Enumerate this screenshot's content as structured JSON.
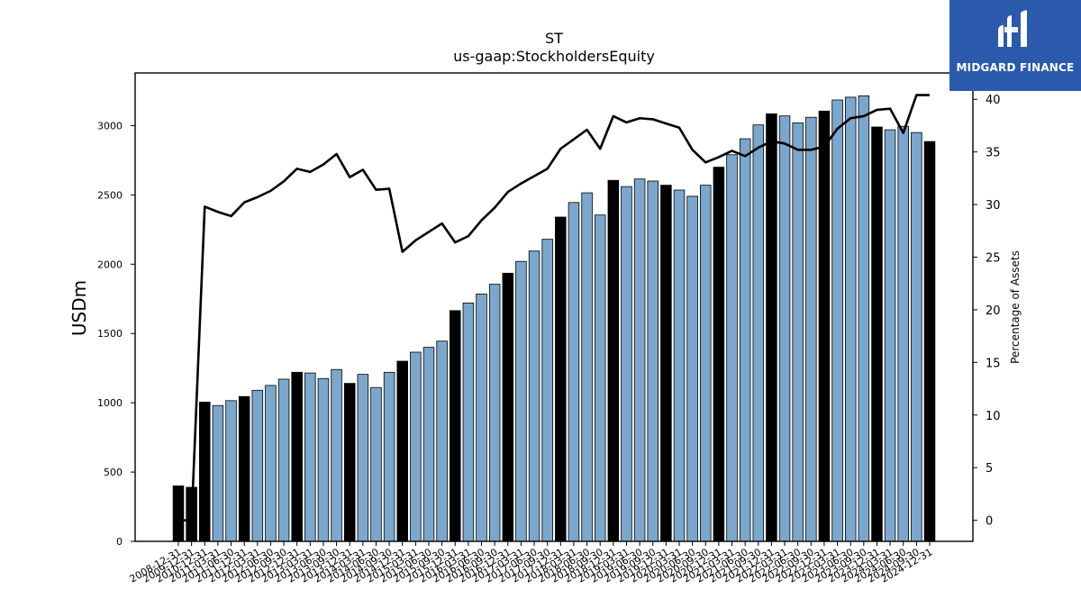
{
  "brand": {
    "name": "MIDGARD FINANCE",
    "bg_color": "#2b5aad"
  },
  "chart_data": {
    "type": "bar",
    "title": "ST",
    "subtitle": "us-gaap:StockholdersEquity",
    "ylabel": "USDm",
    "ylabel_right": "Percentage of Assets",
    "ylim": [
      0,
      3380
    ],
    "ylim_right": [
      -2.0,
      42.5
    ],
    "yticks": [
      0,
      500,
      1000,
      1500,
      2000,
      2500,
      3000
    ],
    "yticks_right": [
      0,
      5,
      10,
      15,
      20,
      25,
      30,
      35,
      40
    ],
    "grid": false,
    "colors": {
      "annual": "#000000",
      "quarterly": "#7ba7cc",
      "line": "#000000"
    },
    "categories": [
      "2008-12-31",
      "2009-12-31",
      "2010-12-31",
      "2011-03-31",
      "2011-06-30",
      "2011-12-31",
      "2012-03-31",
      "2012-06-30",
      "2012-09-30",
      "2012-12-31",
      "2013-03-31",
      "2013-06-30",
      "2013-09-30",
      "2013-12-31",
      "2014-03-31",
      "2014-06-30",
      "2014-09-30",
      "2014-12-31",
      "2015-03-31",
      "2015-06-30",
      "2015-09-30",
      "2015-12-31",
      "2016-03-31",
      "2016-06-30",
      "2016-09-30",
      "2016-12-31",
      "2017-03-31",
      "2017-06-30",
      "2017-09-30",
      "2017-12-31",
      "2018-03-31",
      "2018-06-30",
      "2018-09-30",
      "2018-12-31",
      "2019-03-31",
      "2019-06-30",
      "2019-09-30",
      "2019-12-31",
      "2020-03-31",
      "2020-06-30",
      "2020-09-30",
      "2020-12-31",
      "2021-03-31",
      "2021-06-30",
      "2021-09-30",
      "2021-12-31",
      "2022-03-31",
      "2022-06-30",
      "2022-09-30",
      "2022-12-31",
      "2023-03-31",
      "2023-06-30",
      "2023-09-30",
      "2023-12-31",
      "2024-03-31",
      "2024-06-30",
      "2024-09-30",
      "2024-12-31"
    ],
    "series": [
      {
        "name": "",
        "kind": "bar",
        "values": [
          400,
          390,
          1005,
          980,
          1015,
          1045,
          1090,
          1125,
          1170,
          1220,
          1215,
          1175,
          1240,
          1140,
          1205,
          1110,
          1220,
          1300,
          1365,
          1400,
          1445,
          1665,
          1720,
          1785,
          1855,
          1935,
          2020,
          2095,
          2180,
          2340,
          2445,
          2515,
          2355,
          2605,
          2560,
          2615,
          2600,
          2570,
          2535,
          2490,
          2570,
          2700,
          2790,
          2905,
          3005,
          3085,
          3070,
          3020,
          3060,
          3105,
          3185,
          3205,
          3215,
          2990,
          2970,
          2995,
          2950,
          2885
        ],
        "annual": [
          true,
          true,
          true,
          false,
          false,
          true,
          false,
          false,
          false,
          true,
          false,
          false,
          false,
          true,
          false,
          false,
          false,
          true,
          false,
          false,
          false,
          true,
          false,
          false,
          false,
          true,
          false,
          false,
          false,
          true,
          false,
          false,
          false,
          true,
          false,
          false,
          false,
          true,
          false,
          false,
          false,
          true,
          false,
          false,
          false,
          true,
          false,
          false,
          false,
          true,
          false,
          false,
          false,
          true,
          false,
          false,
          false,
          true
        ]
      },
      {
        "name": "",
        "kind": "line",
        "axis": "right",
        "values": [
          0.0,
          0.0,
          29.8,
          29.3,
          28.9,
          30.2,
          30.7,
          31.3,
          32.2,
          33.4,
          33.1,
          33.8,
          34.8,
          32.6,
          33.3,
          31.4,
          31.5,
          25.5,
          26.6,
          27.4,
          28.2,
          26.4,
          27.0,
          28.5,
          29.7,
          31.2,
          32.0,
          32.7,
          33.4,
          35.3,
          36.2,
          37.1,
          35.3,
          38.4,
          37.8,
          38.2,
          38.1,
          37.7,
          37.3,
          35.2,
          34.0,
          34.5,
          35.1,
          34.6,
          35.4,
          36.0,
          35.8,
          35.2,
          35.2,
          35.5,
          37.2,
          38.2,
          38.4,
          39.0,
          39.1,
          36.8,
          40.4,
          40.4
        ]
      }
    ]
  }
}
